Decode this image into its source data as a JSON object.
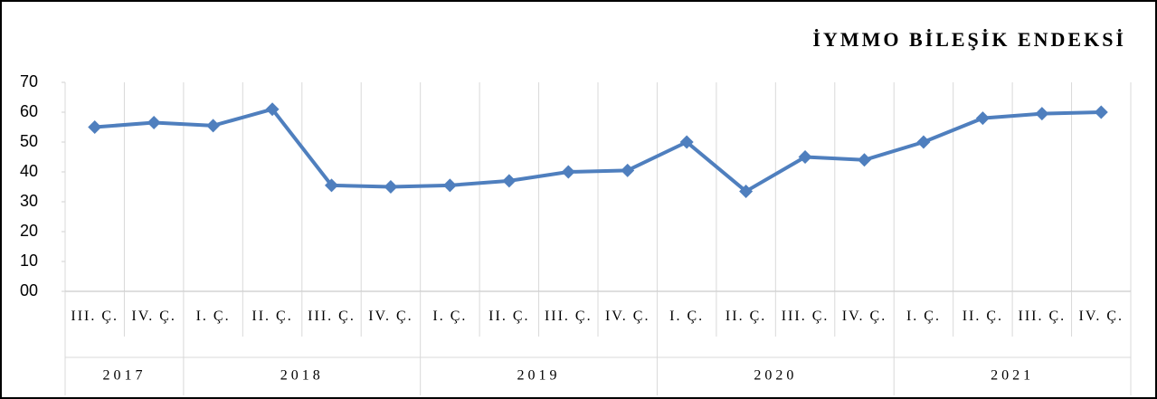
{
  "chart_data": {
    "type": "line",
    "title": "İYMMO BİLEŞİK ENDEKSİ",
    "groups": [
      {
        "label": "2017",
        "categories": [
          "III. Ç.",
          "IV. Ç."
        ]
      },
      {
        "label": "2018",
        "categories": [
          "I. Ç.",
          "II. Ç.",
          "III. Ç.",
          "IV. Ç."
        ]
      },
      {
        "label": "2019",
        "categories": [
          "I. Ç.",
          "II. Ç.",
          "III. Ç.",
          "IV. Ç."
        ]
      },
      {
        "label": "2020",
        "categories": [
          "I. Ç.",
          "II. Ç.",
          "III. Ç.",
          "IV. Ç."
        ]
      },
      {
        "label": "2021",
        "categories": [
          "I. Ç.",
          "II. Ç.",
          "III. Ç.",
          "IV. Ç."
        ]
      }
    ],
    "values": [
      55,
      56.5,
      55.5,
      61,
      35.5,
      35,
      35.5,
      37,
      40,
      40.5,
      50,
      33.5,
      45,
      44,
      50,
      58,
      59.5,
      60
    ],
    "color": "#4f7fbe",
    "ylim": [
      0,
      70
    ],
    "yticks": [
      {
        "value": 0,
        "label": "00"
      },
      10,
      20,
      30,
      40,
      50,
      60,
      70
    ],
    "grid": true
  }
}
